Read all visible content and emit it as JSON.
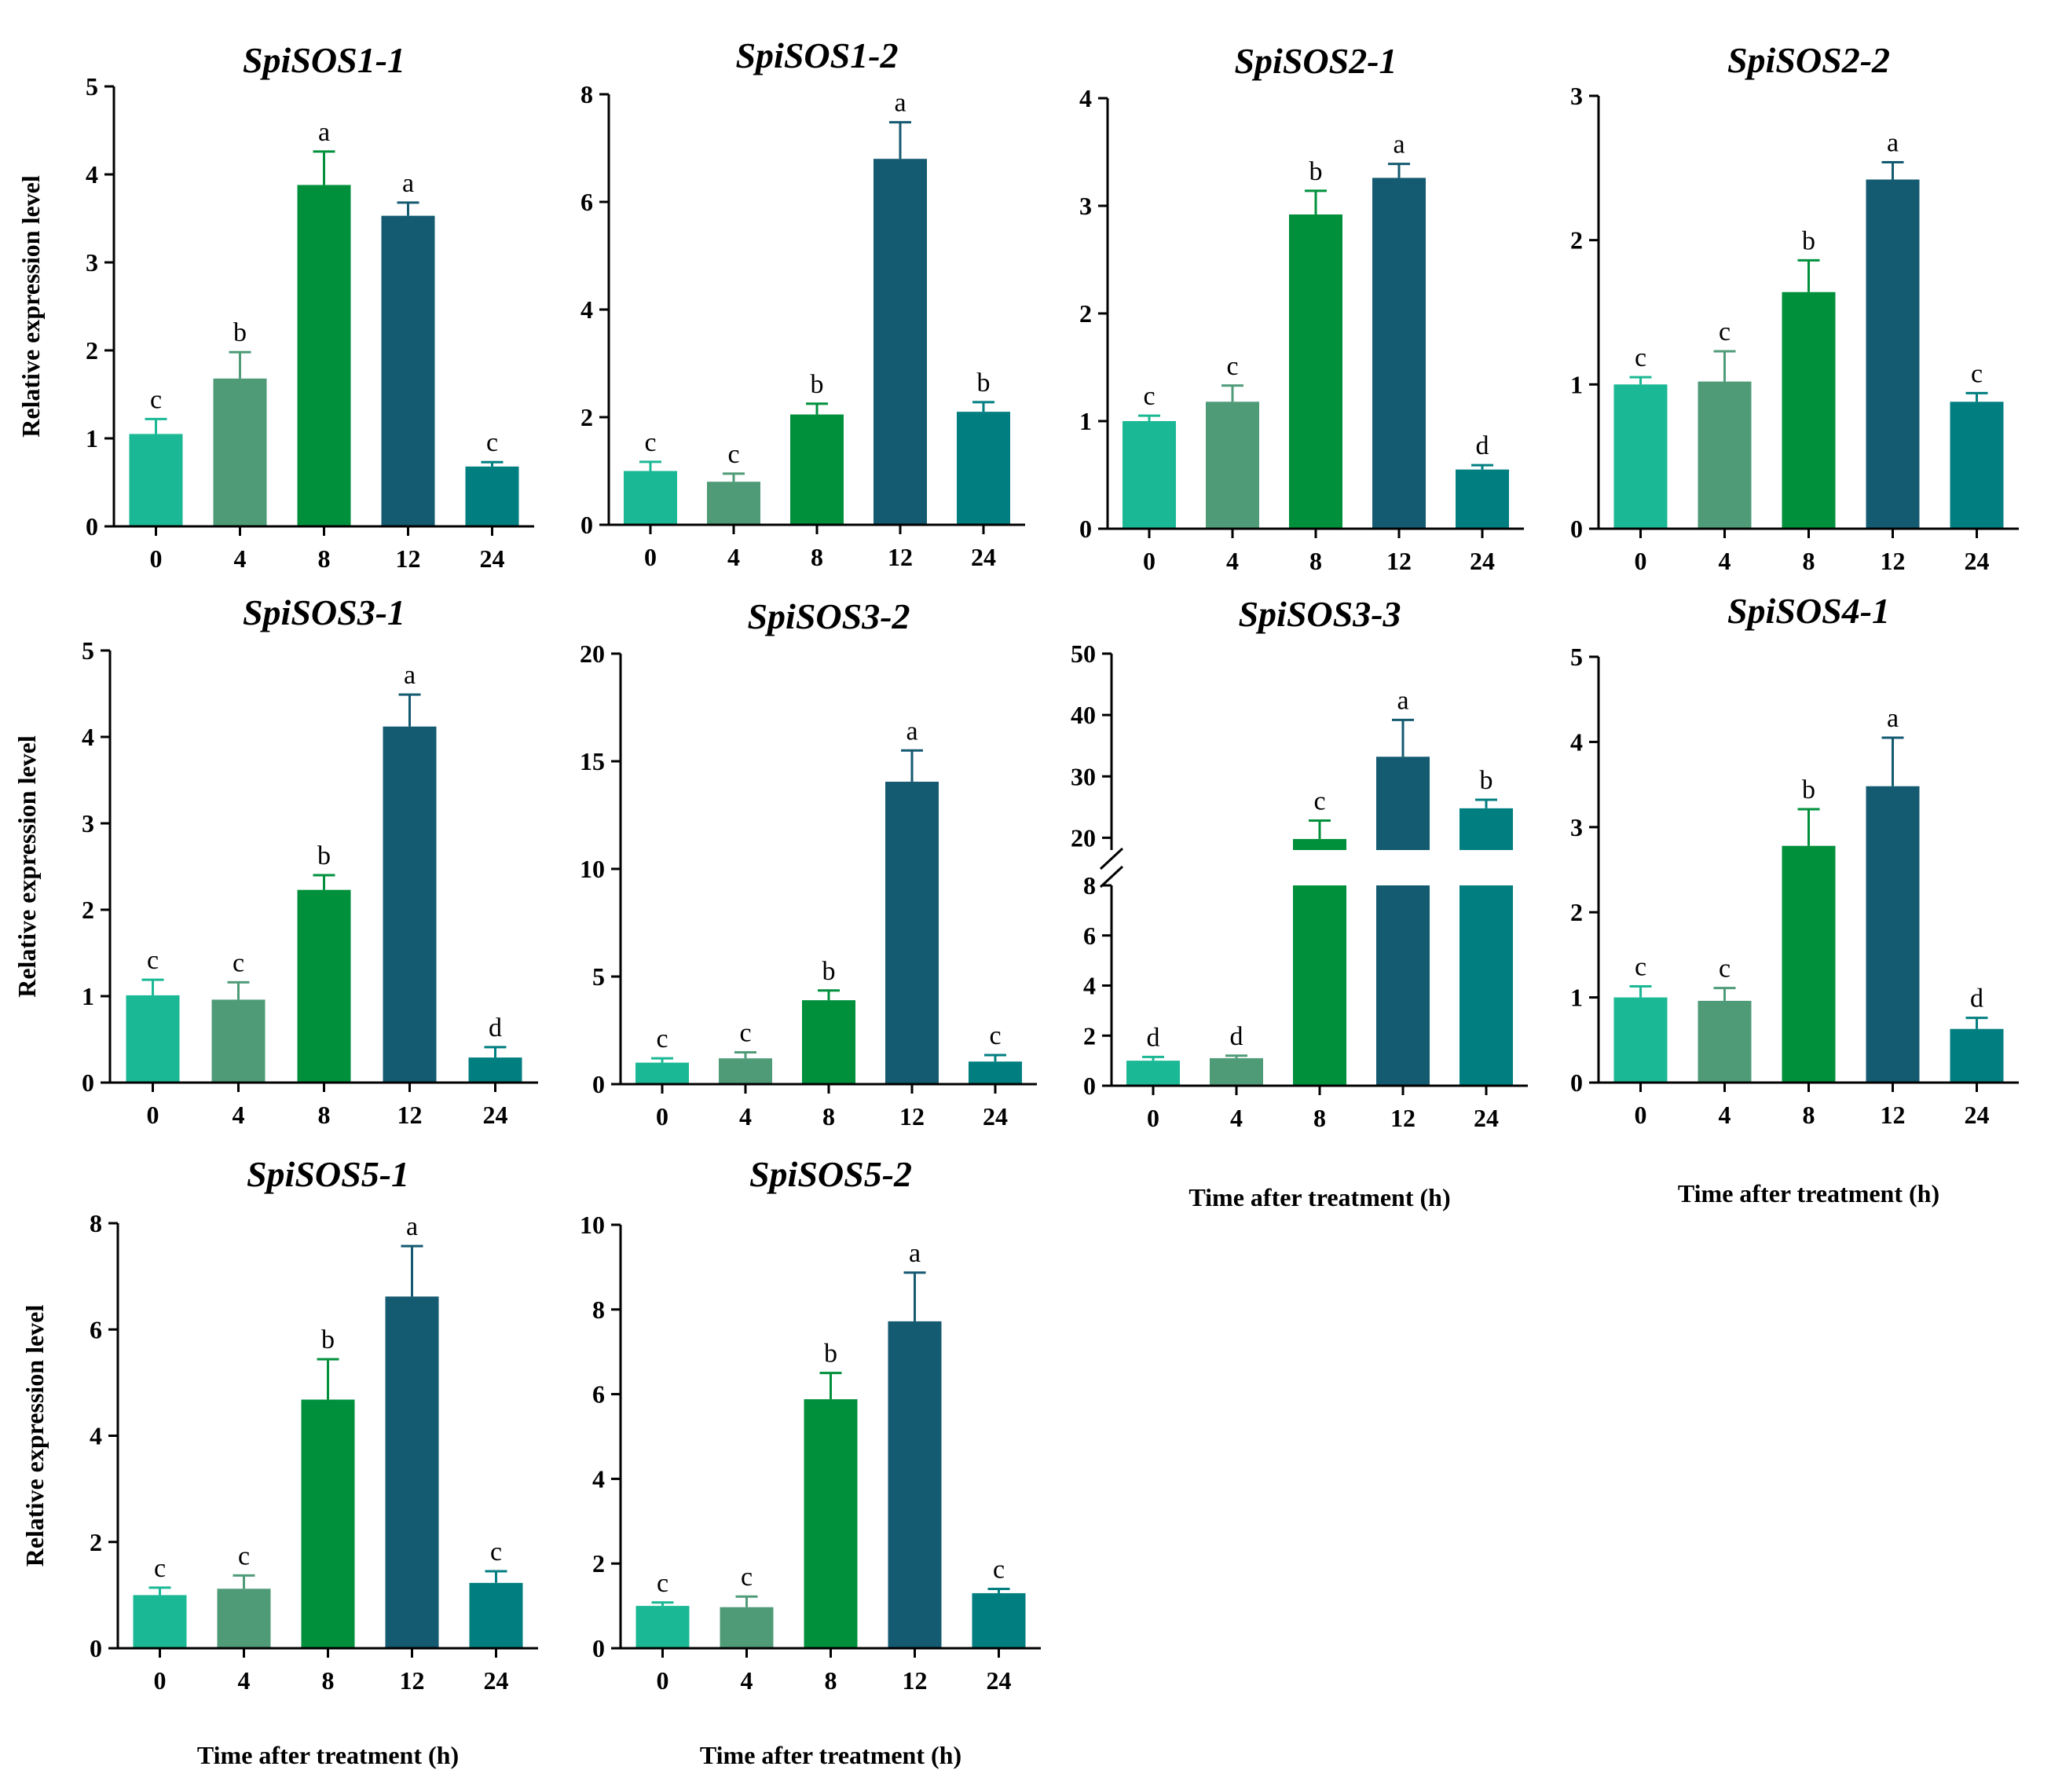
{
  "colors": [
    "#1ab894",
    "#4f9b78",
    "#00903c",
    "#145a70",
    "#017e80"
  ],
  "chart_data": [
    {
      "type": "bar",
      "title": "SpiSOS1-1",
      "ylabel": "Relative expression level",
      "xlabel": "",
      "categories": [
        "0",
        "4",
        "8",
        "12",
        "24"
      ],
      "values": [
        1.05,
        1.68,
        3.88,
        3.53,
        0.68
      ],
      "errors": [
        0.17,
        0.3,
        0.38,
        0.15,
        0.05
      ],
      "letters": [
        "c",
        "b",
        "a",
        "a",
        "c"
      ],
      "ylim": [
        0,
        5
      ],
      "yticks": [
        "0",
        "1",
        "2",
        "3",
        "4",
        "5"
      ]
    },
    {
      "type": "bar",
      "title": "SpiSOS1-2",
      "ylabel": "",
      "xlabel": "",
      "categories": [
        "0",
        "4",
        "8",
        "12",
        "24"
      ],
      "values": [
        1.0,
        0.8,
        2.05,
        6.8,
        2.1
      ],
      "errors": [
        0.17,
        0.15,
        0.2,
        0.68,
        0.18
      ],
      "letters": [
        "c",
        "c",
        "b",
        "a",
        "b"
      ],
      "ylim": [
        0,
        8
      ],
      "yticks": [
        "0",
        "2",
        "4",
        "6",
        "8"
      ]
    },
    {
      "type": "bar",
      "title": "SpiSOS2-1",
      "ylabel": "",
      "xlabel": "",
      "categories": [
        "0",
        "4",
        "8",
        "12",
        "24"
      ],
      "values": [
        1.0,
        1.18,
        2.92,
        3.26,
        0.55
      ],
      "errors": [
        0.05,
        0.15,
        0.22,
        0.13,
        0.04
      ],
      "letters": [
        "c",
        "c",
        "b",
        "a",
        "d"
      ],
      "ylim": [
        0,
        4
      ],
      "yticks": [
        "0",
        "1",
        "2",
        "3",
        "4"
      ]
    },
    {
      "type": "bar",
      "title": "SpiSOS2-2",
      "ylabel": "",
      "xlabel": "",
      "categories": [
        "0",
        "4",
        "8",
        "12",
        "24"
      ],
      "values": [
        1.0,
        1.02,
        1.64,
        2.42,
        0.88
      ],
      "errors": [
        0.05,
        0.21,
        0.22,
        0.12,
        0.06
      ],
      "letters": [
        "c",
        "c",
        "b",
        "a",
        "c"
      ],
      "ylim": [
        0,
        3
      ],
      "yticks": [
        "0",
        "1",
        "2",
        "3"
      ]
    },
    {
      "type": "bar",
      "title": "SpiSOS3-1",
      "ylabel": "Relative expression level",
      "xlabel": "",
      "categories": [
        "0",
        "4",
        "8",
        "12",
        "24"
      ],
      "values": [
        1.01,
        0.96,
        2.23,
        4.12,
        0.29
      ],
      "errors": [
        0.18,
        0.2,
        0.17,
        0.37,
        0.12
      ],
      "letters": [
        "c",
        "c",
        "b",
        "a",
        "d"
      ],
      "ylim": [
        0,
        5
      ],
      "yticks": [
        "0",
        "1",
        "2",
        "3",
        "4",
        "5"
      ]
    },
    {
      "type": "bar",
      "title": "SpiSOS3-2",
      "ylabel": "",
      "xlabel": "",
      "categories": [
        "0",
        "4",
        "8",
        "12",
        "24"
      ],
      "values": [
        1.0,
        1.2,
        3.9,
        14.05,
        1.05
      ],
      "errors": [
        0.2,
        0.28,
        0.45,
        1.45,
        0.3
      ],
      "letters": [
        "c",
        "c",
        "b",
        "a",
        "c"
      ],
      "ylim": [
        0,
        20
      ],
      "yticks": [
        "0",
        "5",
        "10",
        "15",
        "20"
      ]
    },
    {
      "type": "bar",
      "title": "SpiSOS3-3",
      "ylabel": "",
      "xlabel": "Time after treatment (h)",
      "categories": [
        "0",
        "4",
        "8",
        "12",
        "24"
      ],
      "values": [
        1.0,
        1.1,
        19.8,
        33.2,
        24.8
      ],
      "errors": [
        0.15,
        0.1,
        3.0,
        6.0,
        1.4
      ],
      "letters": [
        "d",
        "d",
        "c",
        "a",
        "b"
      ],
      "axis_break": {
        "lower": [
          0,
          8
        ],
        "upper": [
          18,
          50
        ]
      },
      "yticks_lower": [
        "0",
        "2",
        "4",
        "6",
        "8"
      ],
      "yticks_upper": [
        "20",
        "30",
        "40",
        "50"
      ]
    },
    {
      "type": "bar",
      "title": "SpiSOS4-1",
      "ylabel": "",
      "xlabel": "Time after treatment (h)",
      "categories": [
        "0",
        "4",
        "8",
        "12",
        "24"
      ],
      "values": [
        1.0,
        0.96,
        2.78,
        3.48,
        0.63
      ],
      "errors": [
        0.13,
        0.15,
        0.43,
        0.57,
        0.13
      ],
      "letters": [
        "c",
        "c",
        "b",
        "a",
        "d"
      ],
      "ylim": [
        0,
        5
      ],
      "yticks": [
        "0",
        "1",
        "2",
        "3",
        "4",
        "5"
      ]
    },
    {
      "type": "bar",
      "title": "SpiSOS5-1",
      "ylabel": "Relative expression level",
      "xlabel": "Time after treatment (h)",
      "categories": [
        "0",
        "4",
        "8",
        "12",
        "24"
      ],
      "values": [
        1.0,
        1.12,
        4.68,
        6.62,
        1.23
      ],
      "errors": [
        0.14,
        0.25,
        0.76,
        0.95,
        0.22
      ],
      "letters": [
        "c",
        "c",
        "b",
        "a",
        "c"
      ],
      "ylim": [
        0,
        8
      ],
      "yticks": [
        "0",
        "2",
        "4",
        "6",
        "8"
      ]
    },
    {
      "type": "bar",
      "title": "SpiSOS5-2",
      "ylabel": "",
      "xlabel": "Time after treatment (h)",
      "categories": [
        "0",
        "4",
        "8",
        "12",
        "24"
      ],
      "values": [
        1.0,
        0.97,
        5.88,
        7.72,
        1.3
      ],
      "errors": [
        0.08,
        0.25,
        0.62,
        1.15,
        0.1
      ],
      "letters": [
        "c",
        "c",
        "b",
        "a",
        "c"
      ],
      "ylim": [
        0,
        10
      ],
      "yticks": [
        "0",
        "2",
        "4",
        "6",
        "8",
        "10"
      ]
    }
  ]
}
